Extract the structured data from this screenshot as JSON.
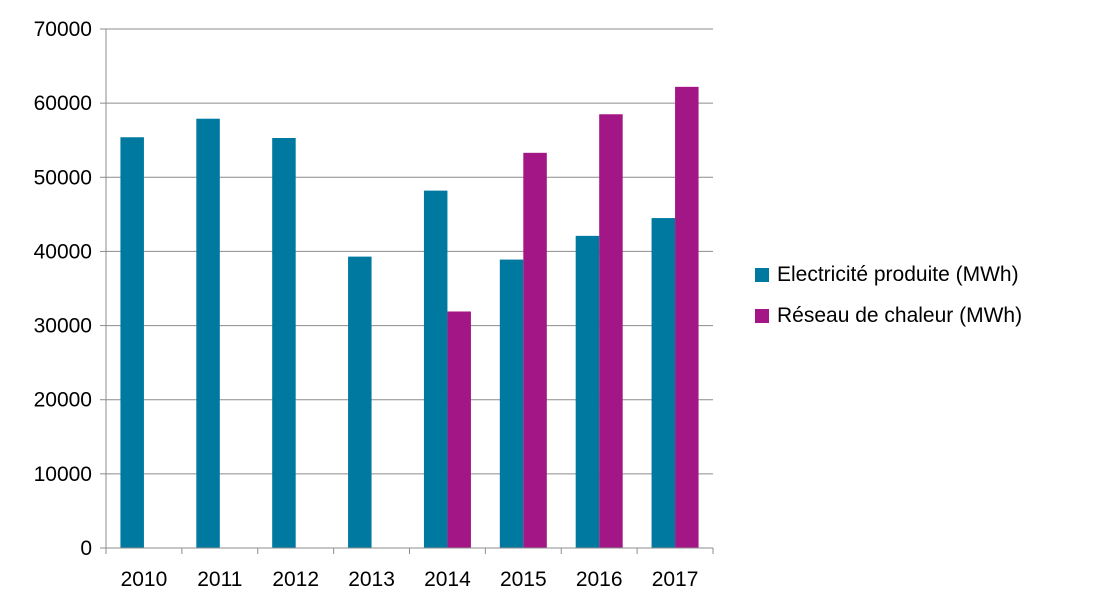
{
  "chart_data": {
    "type": "bar",
    "title": "",
    "xlabel": "",
    "ylabel": "",
    "categories": [
      "2010",
      "2011",
      "2012",
      "2013",
      "2014",
      "2015",
      "2016",
      "2017"
    ],
    "series": [
      {
        "name": "Electricité produite (MWh)",
        "color": "#0079a0",
        "values": [
          55400,
          57900,
          55300,
          39300,
          48200,
          38900,
          42100,
          44500
        ]
      },
      {
        "name": "Réseau de chaleur (MWh)",
        "color": "#a31685",
        "values": [
          null,
          null,
          null,
          null,
          31900,
          53300,
          58500,
          62200
        ]
      }
    ],
    "ylim": [
      0,
      70000
    ],
    "yticks": [
      "0",
      "10000",
      "20000",
      "30000",
      "40000",
      "50000",
      "60000",
      "70000"
    ],
    "grid": true,
    "legend_position": "right"
  }
}
